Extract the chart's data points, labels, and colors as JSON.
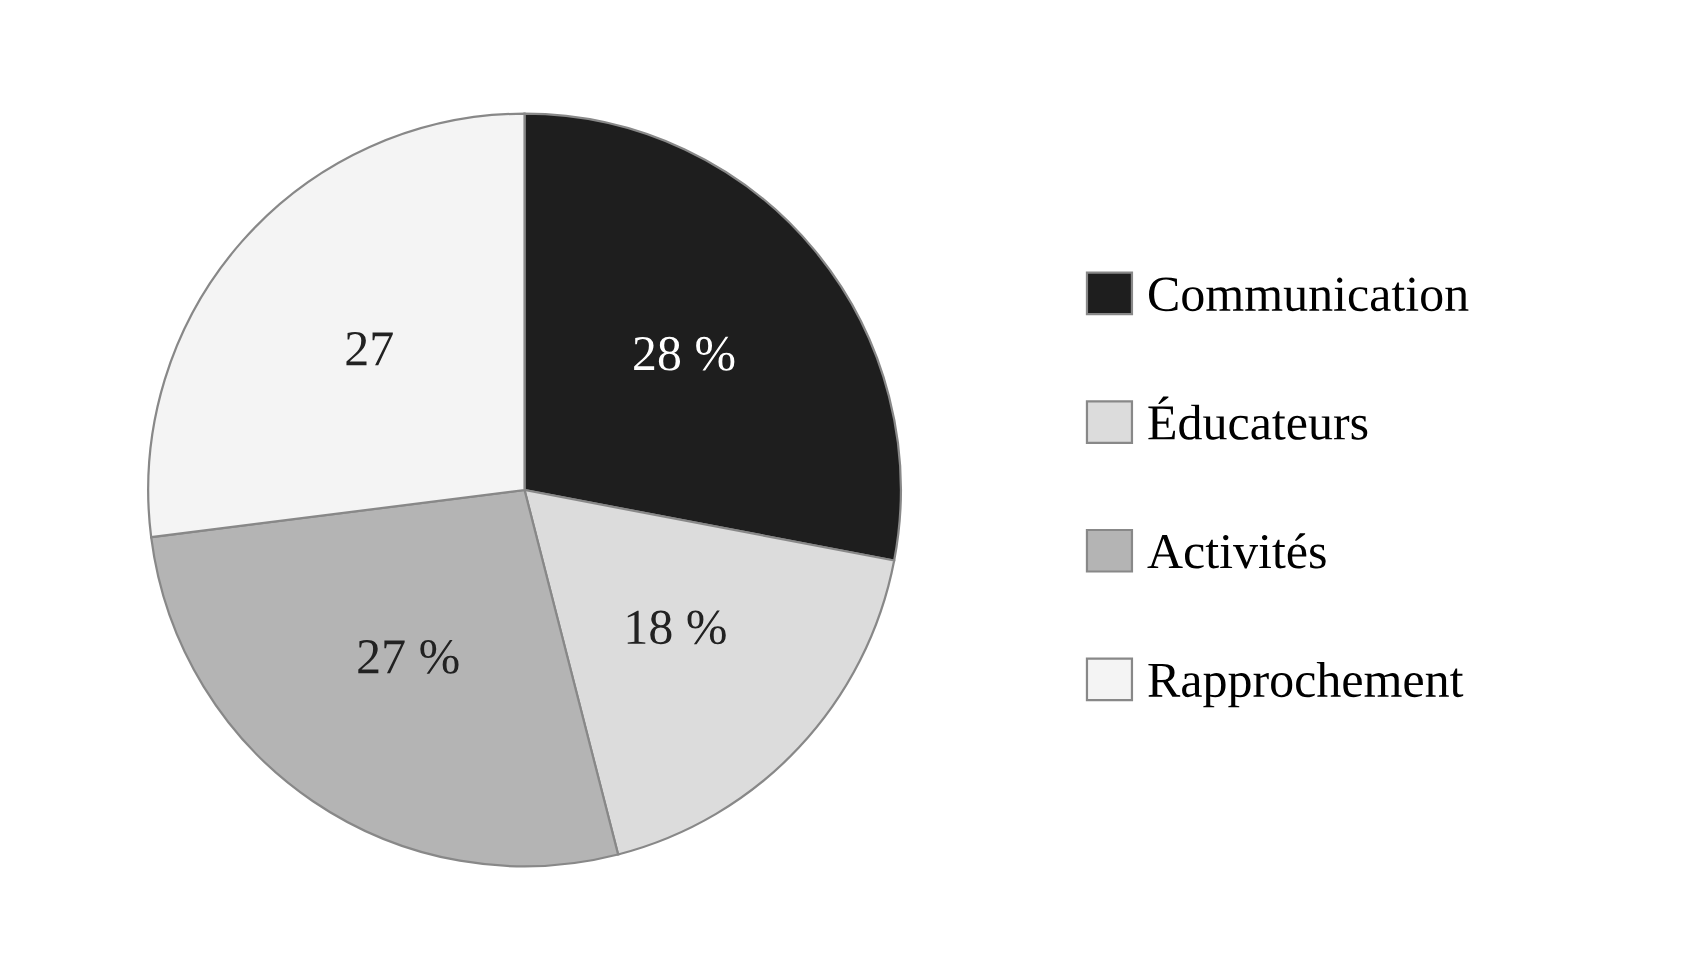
{
  "chart_data": {
    "type": "pie",
    "categories": [
      "Communication",
      "Éducateurs",
      "Activités",
      "Rapprochement"
    ],
    "values": [
      28,
      18,
      27,
      27
    ],
    "colors": [
      "#1e1e1e",
      "#dcdcdc",
      "#b4b4b4",
      "#f4f4f4"
    ],
    "value_labels": [
      "28 %",
      "18 %",
      "27 %",
      "27"
    ],
    "legend": "right"
  }
}
